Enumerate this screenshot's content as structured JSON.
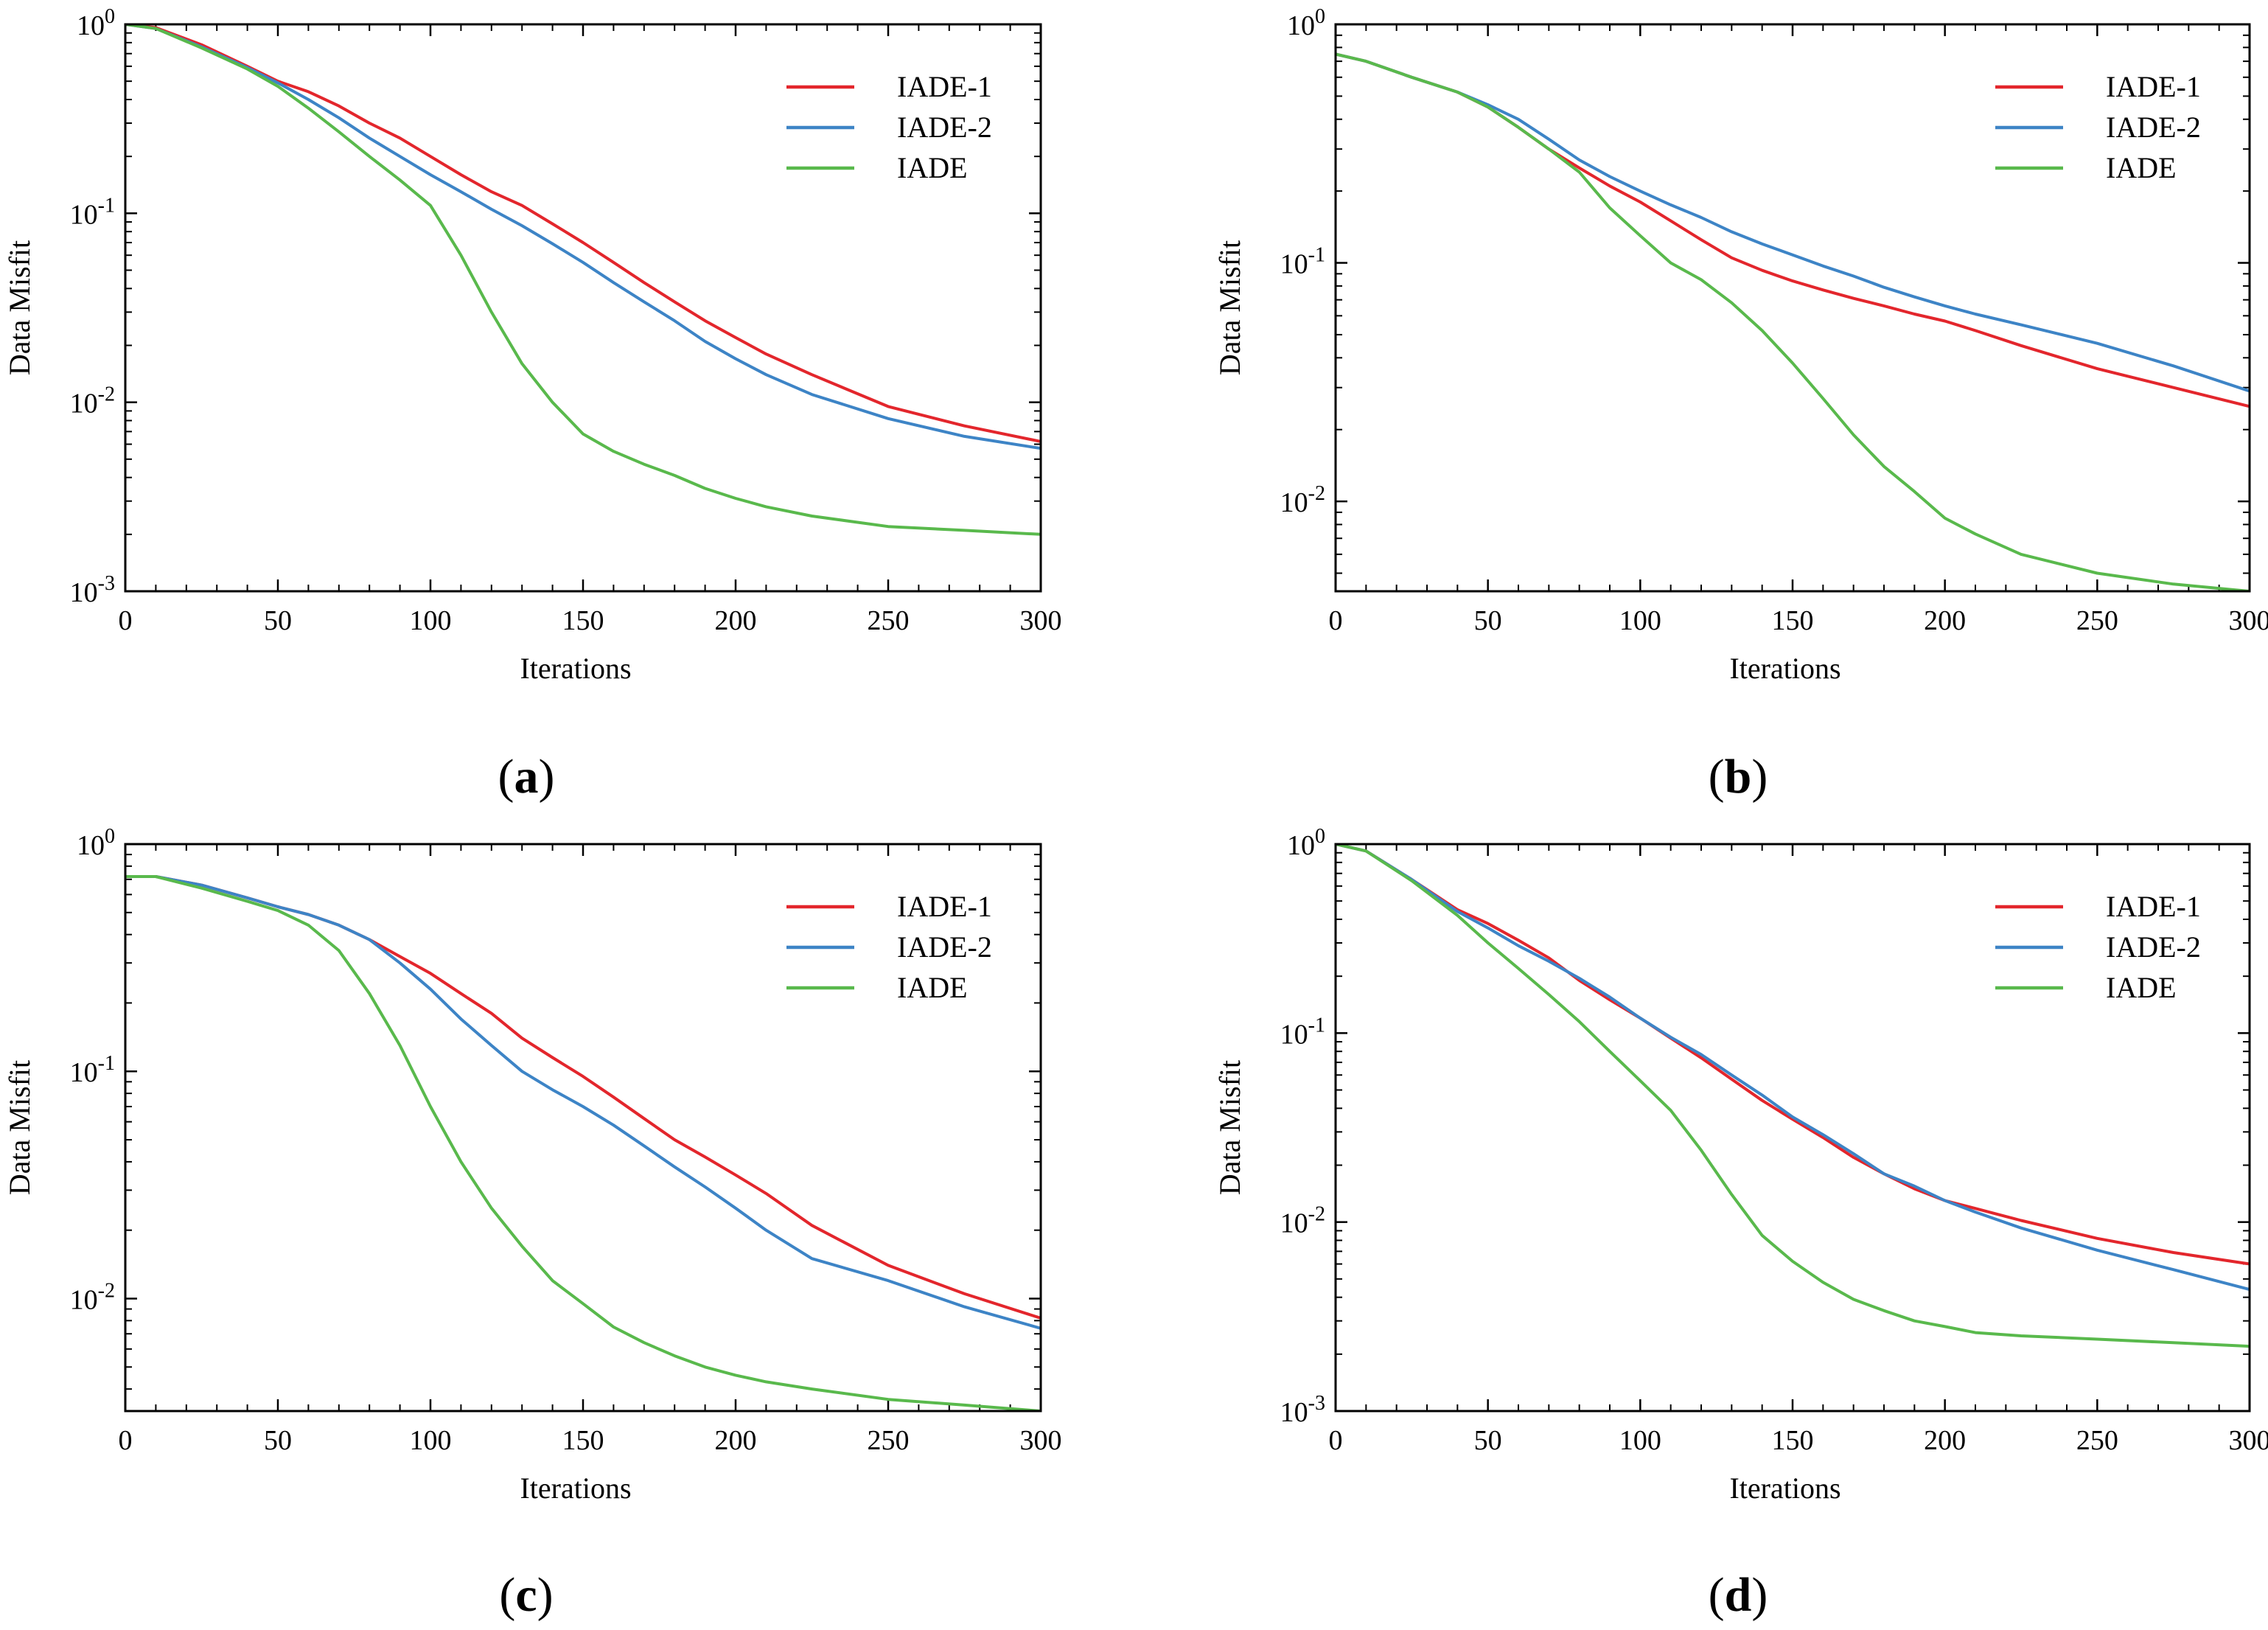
{
  "figure": {
    "colors": {
      "IADE-1": "#e3262c",
      "IADE-2": "#3d84c6",
      "IADE": "#59b94c"
    }
  },
  "chart_data": [
    {
      "type": "line",
      "panel": "a",
      "panel_label": "(a)",
      "xlabel": "Iterations",
      "ylabel": "Data Misfit",
      "yscale": "log",
      "xlim": [
        0,
        300
      ],
      "ylim": [
        0.001,
        1
      ],
      "xticks": [
        0,
        50,
        100,
        150,
        200,
        250,
        300
      ],
      "yticks": [
        {
          "value": 1,
          "base": "10",
          "exp": "0"
        },
        {
          "value": 0.1,
          "base": "10",
          "exp": "-1"
        },
        {
          "value": 0.01,
          "base": "10",
          "exp": "-2"
        },
        {
          "value": 0.001,
          "base": "10",
          "exp": "-3"
        }
      ],
      "legend": [
        "IADE-1",
        "IADE-2",
        "IADE"
      ],
      "legend_position": "top-right",
      "x": [
        0,
        10,
        25,
        40,
        50,
        60,
        70,
        80,
        90,
        100,
        110,
        120,
        130,
        140,
        150,
        160,
        170,
        180,
        190,
        200,
        210,
        225,
        250,
        275,
        300
      ],
      "series": [
        {
          "name": "IADE-1",
          "values": [
            1.0,
            0.96,
            0.78,
            0.6,
            0.5,
            0.44,
            0.37,
            0.3,
            0.25,
            0.2,
            0.16,
            0.13,
            0.11,
            0.088,
            0.07,
            0.055,
            0.043,
            0.034,
            0.027,
            0.022,
            0.018,
            0.014,
            0.0095,
            0.0075,
            0.0062
          ]
        },
        {
          "name": "IADE-2",
          "values": [
            1.0,
            0.95,
            0.76,
            0.59,
            0.49,
            0.4,
            0.32,
            0.25,
            0.2,
            0.16,
            0.13,
            0.105,
            0.086,
            0.069,
            0.055,
            0.043,
            0.034,
            0.027,
            0.021,
            0.017,
            0.014,
            0.011,
            0.0082,
            0.0066,
            0.0057
          ]
        },
        {
          "name": "IADE",
          "values": [
            1.0,
            0.95,
            0.75,
            0.58,
            0.47,
            0.36,
            0.27,
            0.2,
            0.15,
            0.11,
            0.06,
            0.03,
            0.016,
            0.01,
            0.0068,
            0.0055,
            0.0047,
            0.0041,
            0.0035,
            0.0031,
            0.0028,
            0.0025,
            0.0022,
            0.0021,
            0.002
          ]
        }
      ]
    },
    {
      "type": "line",
      "panel": "b",
      "panel_label": "(b)",
      "xlabel": "Iterations",
      "ylabel": "Data Misfit",
      "yscale": "log",
      "xlim": [
        0,
        300
      ],
      "ylim": [
        0.0042,
        1
      ],
      "xticks": [
        0,
        50,
        100,
        150,
        200,
        250,
        300
      ],
      "yticks": [
        {
          "value": 1,
          "base": "10",
          "exp": "0"
        },
        {
          "value": 0.1,
          "base": "10",
          "exp": "-1"
        },
        {
          "value": 0.01,
          "base": "10",
          "exp": "-2"
        }
      ],
      "legend": [
        "IADE-1",
        "IADE-2",
        "IADE"
      ],
      "legend_position": "top-right",
      "x": [
        0,
        10,
        25,
        40,
        50,
        60,
        70,
        80,
        90,
        100,
        110,
        120,
        130,
        140,
        150,
        160,
        170,
        180,
        190,
        200,
        210,
        225,
        250,
        275,
        300
      ],
      "series": [
        {
          "name": "IADE-1",
          "values": [
            0.75,
            0.7,
            0.6,
            0.52,
            0.45,
            0.37,
            0.3,
            0.25,
            0.21,
            0.18,
            0.15,
            0.125,
            0.105,
            0.093,
            0.084,
            0.077,
            0.071,
            0.066,
            0.061,
            0.057,
            0.052,
            0.045,
            0.036,
            0.03,
            0.025
          ]
        },
        {
          "name": "IADE-2",
          "values": [
            0.75,
            0.7,
            0.6,
            0.52,
            0.46,
            0.4,
            0.33,
            0.27,
            0.23,
            0.2,
            0.175,
            0.155,
            0.135,
            0.12,
            0.108,
            0.097,
            0.088,
            0.079,
            0.072,
            0.066,
            0.061,
            0.055,
            0.046,
            0.037,
            0.029
          ]
        },
        {
          "name": "IADE",
          "values": [
            0.75,
            0.7,
            0.6,
            0.52,
            0.45,
            0.37,
            0.3,
            0.24,
            0.17,
            0.13,
            0.1,
            0.085,
            0.068,
            0.052,
            0.038,
            0.027,
            0.019,
            0.014,
            0.011,
            0.0085,
            0.0073,
            0.006,
            0.005,
            0.0045,
            0.0042
          ]
        }
      ]
    },
    {
      "type": "line",
      "panel": "c",
      "panel_label": "(c)",
      "xlabel": "Iterations",
      "ylabel": "Data Misfit",
      "yscale": "log",
      "xlim": [
        0,
        300
      ],
      "ylim": [
        0.0032,
        1
      ],
      "xticks": [
        0,
        50,
        100,
        150,
        200,
        250,
        300
      ],
      "yticks": [
        {
          "value": 1,
          "base": "10",
          "exp": "0"
        },
        {
          "value": 0.1,
          "base": "10",
          "exp": "-1"
        },
        {
          "value": 0.01,
          "base": "10",
          "exp": "-2"
        }
      ],
      "legend": [
        "IADE-1",
        "IADE-2",
        "IADE"
      ],
      "legend_position": "top-right",
      "x": [
        0,
        10,
        25,
        40,
        50,
        60,
        70,
        80,
        90,
        100,
        110,
        120,
        130,
        140,
        150,
        160,
        170,
        180,
        190,
        200,
        210,
        225,
        250,
        275,
        300
      ],
      "series": [
        {
          "name": "IADE-1",
          "values": [
            0.72,
            0.72,
            0.66,
            0.58,
            0.53,
            0.49,
            0.44,
            0.38,
            0.32,
            0.27,
            0.22,
            0.18,
            0.14,
            0.115,
            0.095,
            0.077,
            0.062,
            0.05,
            0.042,
            0.035,
            0.029,
            0.021,
            0.014,
            0.0105,
            0.0082
          ]
        },
        {
          "name": "IADE-2",
          "values": [
            0.72,
            0.72,
            0.66,
            0.58,
            0.53,
            0.49,
            0.44,
            0.38,
            0.3,
            0.23,
            0.17,
            0.13,
            0.1,
            0.083,
            0.07,
            0.058,
            0.047,
            0.038,
            0.031,
            0.025,
            0.02,
            0.015,
            0.012,
            0.0092,
            0.0074
          ]
        },
        {
          "name": "IADE",
          "values": [
            0.72,
            0.72,
            0.64,
            0.56,
            0.51,
            0.44,
            0.34,
            0.22,
            0.13,
            0.07,
            0.04,
            0.025,
            0.017,
            0.012,
            0.0095,
            0.0075,
            0.0064,
            0.0056,
            0.005,
            0.0046,
            0.0043,
            0.004,
            0.0036,
            0.0034,
            0.0032
          ]
        }
      ]
    },
    {
      "type": "line",
      "panel": "d",
      "panel_label": "(d)",
      "xlabel": "Iterations",
      "ylabel": "Data Misfit",
      "yscale": "log",
      "xlim": [
        0,
        300
      ],
      "ylim": [
        0.001,
        1
      ],
      "xticks": [
        0,
        50,
        100,
        150,
        200,
        250,
        300
      ],
      "yticks": [
        {
          "value": 1,
          "base": "10",
          "exp": "0"
        },
        {
          "value": 0.1,
          "base": "10",
          "exp": "-1"
        },
        {
          "value": 0.01,
          "base": "10",
          "exp": "-2"
        },
        {
          "value": 0.001,
          "base": "10",
          "exp": "-3"
        }
      ],
      "legend": [
        "IADE-1",
        "IADE-2",
        "IADE"
      ],
      "legend_position": "top-right",
      "x": [
        0,
        10,
        25,
        40,
        50,
        60,
        70,
        80,
        90,
        100,
        110,
        120,
        130,
        140,
        150,
        160,
        170,
        180,
        190,
        200,
        210,
        225,
        250,
        275,
        300
      ],
      "series": [
        {
          "name": "IADE-1",
          "values": [
            1.0,
            0.92,
            0.65,
            0.45,
            0.38,
            0.31,
            0.25,
            0.19,
            0.15,
            0.12,
            0.094,
            0.074,
            0.057,
            0.044,
            0.035,
            0.028,
            0.022,
            0.018,
            0.015,
            0.013,
            0.0118,
            0.0102,
            0.0082,
            0.0069,
            0.006
          ]
        },
        {
          "name": "IADE-2",
          "values": [
            1.0,
            0.92,
            0.65,
            0.44,
            0.36,
            0.29,
            0.24,
            0.195,
            0.155,
            0.12,
            0.095,
            0.077,
            0.06,
            0.047,
            0.036,
            0.029,
            0.023,
            0.018,
            0.0155,
            0.013,
            0.0113,
            0.0093,
            0.0071,
            0.0056,
            0.0044
          ]
        },
        {
          "name": "IADE",
          "values": [
            1.0,
            0.92,
            0.64,
            0.42,
            0.3,
            0.22,
            0.16,
            0.115,
            0.08,
            0.056,
            0.039,
            0.024,
            0.014,
            0.0085,
            0.0062,
            0.0048,
            0.0039,
            0.0034,
            0.003,
            0.0028,
            0.0026,
            0.0025,
            0.0024,
            0.0023,
            0.0022
          ]
        }
      ]
    }
  ]
}
